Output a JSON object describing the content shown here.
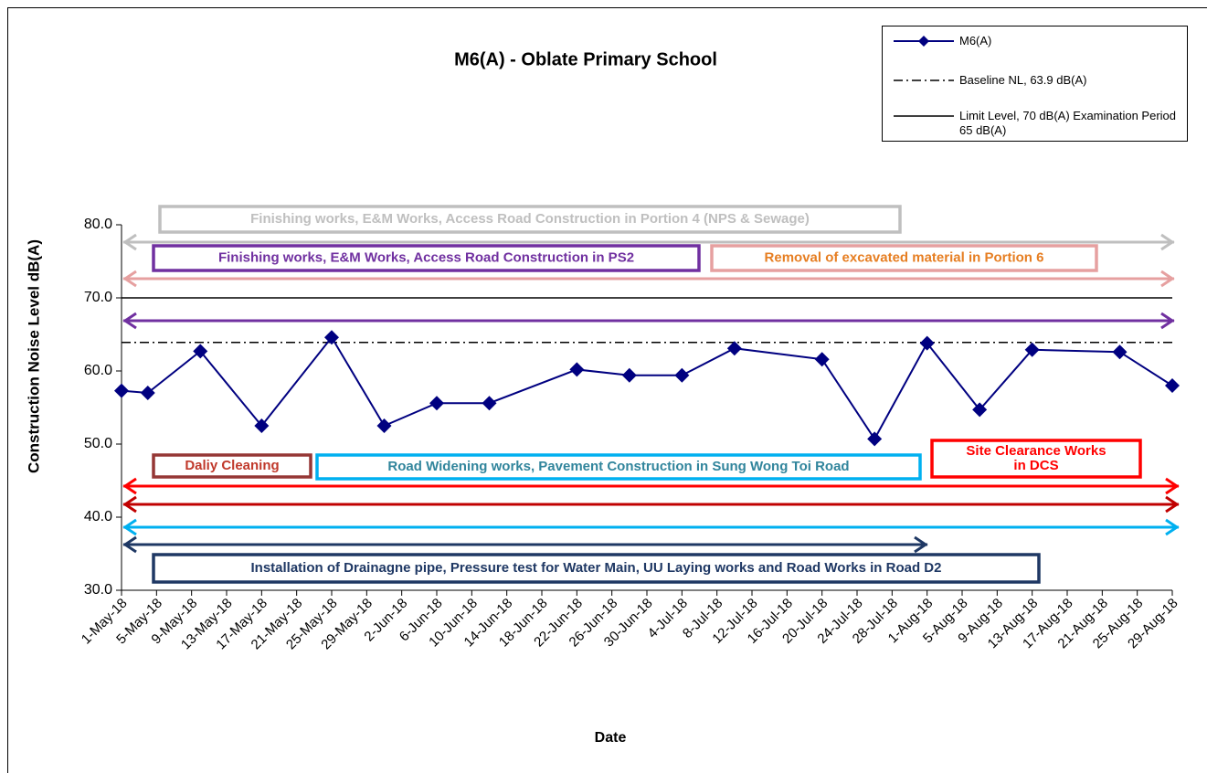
{
  "chart_data": {
    "type": "line",
    "title": "M6(A) - Oblate Primary School",
    "x_label": "Date",
    "y_label": "Construction Noise Level  dB(A)",
    "xlim": [
      "2018-05-01",
      "2018-08-29"
    ],
    "xticks": [
      {
        "value": "2018-05-01",
        "label": "1-May-18"
      },
      {
        "value": "2018-05-05",
        "label": "5-May-18"
      },
      {
        "value": "2018-05-09",
        "label": "9-May-18"
      },
      {
        "value": "2018-05-13",
        "label": "13-May-18"
      },
      {
        "value": "2018-05-17",
        "label": "17-May-18"
      },
      {
        "value": "2018-05-21",
        "label": "21-May-18"
      },
      {
        "value": "2018-05-25",
        "label": "25-May-18"
      },
      {
        "value": "2018-05-29",
        "label": "29-May-18"
      },
      {
        "value": "2018-06-02",
        "label": "2-Jun-18"
      },
      {
        "value": "2018-06-06",
        "label": "6-Jun-18"
      },
      {
        "value": "2018-06-10",
        "label": "10-Jun-18"
      },
      {
        "value": "2018-06-14",
        "label": "14-Jun-18"
      },
      {
        "value": "2018-06-18",
        "label": "18-Jun-18"
      },
      {
        "value": "2018-06-22",
        "label": "22-Jun-18"
      },
      {
        "value": "2018-06-26",
        "label": "26-Jun-18"
      },
      {
        "value": "2018-06-30",
        "label": "30-Jun-18"
      },
      {
        "value": "2018-07-04",
        "label": "4-Jul-18"
      },
      {
        "value": "2018-07-08",
        "label": "8-Jul-18"
      },
      {
        "value": "2018-07-12",
        "label": "12-Jul-18"
      },
      {
        "value": "2018-07-16",
        "label": "16-Jul-18"
      },
      {
        "value": "2018-07-20",
        "label": "20-Jul-18"
      },
      {
        "value": "2018-07-24",
        "label": "24-Jul-18"
      },
      {
        "value": "2018-07-28",
        "label": "28-Jul-18"
      },
      {
        "value": "2018-08-01",
        "label": "1-Aug-18"
      },
      {
        "value": "2018-08-05",
        "label": "5-Aug-18"
      },
      {
        "value": "2018-08-09",
        "label": "9-Aug-18"
      },
      {
        "value": "2018-08-13",
        "label": "13-Aug-18"
      },
      {
        "value": "2018-08-17",
        "label": "17-Aug-18"
      },
      {
        "value": "2018-08-21",
        "label": "21-Aug-18"
      },
      {
        "value": "2018-08-25",
        "label": "25-Aug-18"
      },
      {
        "value": "2018-08-29",
        "label": "29-Aug-18"
      }
    ],
    "ylim": [
      30,
      80
    ],
    "yticks": [
      {
        "value": 30,
        "label": "30.0"
      },
      {
        "value": 40,
        "label": "40.0"
      },
      {
        "value": 50,
        "label": "50.0"
      },
      {
        "value": 60,
        "label": "60.0"
      },
      {
        "value": 70,
        "label": "70.0"
      },
      {
        "value": 80,
        "label": "80.0"
      }
    ],
    "series": [
      {
        "name": "M6(A)",
        "color": "#000080",
        "x": [
          "2018-05-01",
          "2018-05-04",
          "2018-05-10",
          "2018-05-17",
          "2018-05-25",
          "2018-05-31",
          "2018-06-06",
          "2018-06-12",
          "2018-06-22",
          "2018-06-28",
          "2018-07-04",
          "2018-07-10",
          "2018-07-20",
          "2018-07-26",
          "2018-08-01",
          "2018-08-07",
          "2018-08-13",
          "2018-08-23",
          "2018-08-29"
        ],
        "values": [
          57.3,
          57.0,
          62.7,
          52.5,
          64.6,
          52.5,
          55.6,
          55.6,
          60.2,
          59.4,
          59.4,
          63.1,
          61.6,
          50.7,
          63.8,
          54.7,
          62.9,
          62.6,
          58.0
        ]
      }
    ],
    "reference_lines": [
      {
        "name": "Baseline NL, 63.9 dB(A)",
        "value": 63.9,
        "color": "#000000",
        "style": "dashdot"
      },
      {
        "name": "Limit Level, 70 dB(A) Examination Period  65 dB(A)",
        "value": 70,
        "color": "#000000",
        "style": "solid"
      }
    ],
    "annotations": [
      {
        "lines": [
          "Finishing works, E&M Works, Access Road Construction in Portion 4 (NPS & Sewage)"
        ],
        "color": "#bfbfbf",
        "box_color": "#bfbfbf",
        "arrow_color": "#bfbfbf"
      },
      {
        "lines": [
          "Finishing works, E&M Works, Access Road Construction in PS2"
        ],
        "color": "#7030a0",
        "box_color": "#7030a0",
        "arrow_color": "#7030a0"
      },
      {
        "lines": [
          "Removal of excavated material in Portion 6"
        ],
        "color": "#e67e22",
        "box_color": "#e6a0a0",
        "arrow_color": "#e6a0a0"
      },
      {
        "lines": [
          "Daliy Cleaning"
        ],
        "color": "#c0392b",
        "box_color": "#953735",
        "arrow_color": "#c00000"
      },
      {
        "lines": [
          "Road Widening works, Pavement Construction in Sung Wong Toi Road"
        ],
        "color": "#31859c",
        "box_color": "#00b0f0",
        "arrow_color": "#00b0f0"
      },
      {
        "lines": [
          "Site Clearance Works",
          "in DCS"
        ],
        "color": "#ff0000",
        "box_color": "#ff0000",
        "arrow_color": "#ff0000"
      },
      {
        "lines": [
          "Installation of Drainagne pipe, Pressure test for Water Main, UU Laying works and Road Works in Road D2"
        ],
        "color": "#1f3864",
        "box_color": "#1f3864",
        "arrow_color": "#1f3864"
      }
    ]
  }
}
